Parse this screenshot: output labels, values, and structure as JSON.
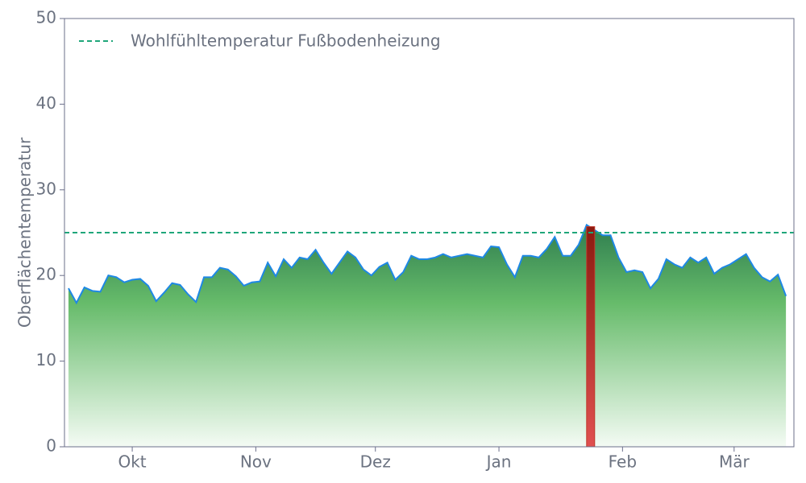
{
  "chart_data": {
    "type": "area",
    "ylabel": "Oberflächentemperatur",
    "x": [
      14,
      16,
      18,
      20,
      22,
      24,
      26,
      28,
      30,
      32,
      34,
      36,
      38,
      40,
      42,
      44,
      46,
      48,
      50,
      52,
      54,
      56,
      58,
      60,
      62,
      64,
      66,
      68,
      70,
      72,
      74,
      76,
      78,
      80,
      82,
      84,
      86,
      88,
      90,
      92,
      94,
      96,
      98,
      100,
      102,
      104,
      106,
      108,
      110,
      112,
      114,
      116,
      118,
      120,
      122,
      124,
      126,
      128,
      130,
      132,
      134,
      136,
      138,
      140,
      142,
      144,
      146,
      148,
      150,
      152,
      154,
      156,
      158,
      160,
      162,
      164,
      166,
      168,
      170,
      172,
      174,
      176,
      178,
      180,
      182,
      184,
      186,
      188,
      190,
      192,
      194
    ],
    "series": [
      {
        "color": "#1e88e5",
        "values": [
          18.5,
          16.8,
          18.6,
          18.2,
          18.1,
          20.0,
          19.8,
          19.2,
          19.5,
          19.6,
          18.8,
          17.0,
          18.0,
          19.1,
          18.9,
          17.8,
          16.9,
          19.8,
          19.8,
          20.9,
          20.7,
          19.9,
          18.8,
          19.2,
          19.3,
          21.5,
          19.9,
          21.9,
          20.9,
          22.1,
          21.9,
          23.0,
          21.5,
          20.2,
          21.5,
          22.8,
          22.1,
          20.7,
          20.0,
          21.0,
          21.5,
          19.5,
          20.4,
          22.3,
          21.9,
          21.9,
          22.1,
          22.5,
          22.1,
          22.3,
          22.5,
          22.3,
          22.1,
          23.4,
          23.3,
          21.3,
          19.8,
          22.3,
          22.3,
          22.1,
          23.1,
          24.5,
          22.3,
          22.3,
          23.6,
          25.9,
          25.3,
          24.7,
          24.7,
          22.1,
          20.4,
          20.6,
          20.4,
          18.5,
          19.6,
          21.9,
          21.3,
          20.9,
          22.1,
          21.5,
          22.1,
          20.2,
          20.9,
          21.3,
          21.9,
          22.5,
          20.9,
          19.8,
          19.3,
          20.1,
          17.6
        ]
      }
    ],
    "threshold": {
      "name": "Wohlfühltemperatur Fußbodenheizung",
      "value": 25,
      "color": "#1fa67a"
    },
    "highlight": {
      "x": 145,
      "value": 25.7,
      "color": "#c0392b"
    },
    "xlim": [
      13,
      196
    ],
    "ylim": [
      0,
      50
    ],
    "xticks": [
      {
        "value": 30,
        "label": "Okt"
      },
      {
        "value": 61,
        "label": "Nov"
      },
      {
        "value": 91,
        "label": "Dez"
      },
      {
        "value": 122,
        "label": "Jan"
      },
      {
        "value": 153,
        "label": "Feb"
      },
      {
        "value": 181,
        "label": "Mär"
      }
    ],
    "yticks": [
      0,
      10,
      20,
      30,
      40,
      50
    ],
    "legend": "upper left"
  }
}
